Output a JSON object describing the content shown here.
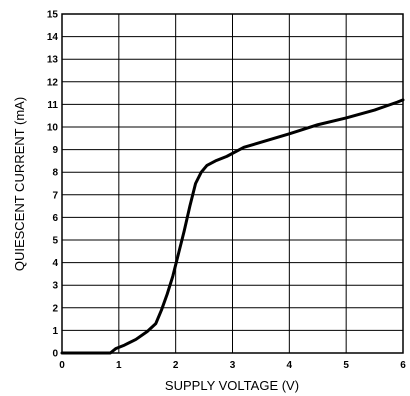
{
  "chart_data": {
    "type": "line",
    "title": "",
    "xlabel": "SUPPLY VOLTAGE (V)",
    "ylabel": "QUIESCENT CURRENT (mA)",
    "xlim": [
      0,
      6
    ],
    "ylim": [
      0,
      15
    ],
    "x_ticks": [
      0,
      1,
      2,
      3,
      4,
      5,
      6
    ],
    "y_ticks": [
      0,
      1,
      2,
      3,
      4,
      5,
      6,
      7,
      8,
      9,
      10,
      11,
      12,
      13,
      14,
      15
    ],
    "grid": true,
    "legend": "none",
    "series": [
      {
        "color": "#000000",
        "x": [
          0,
          0.85,
          0.95,
          1.1,
          1.3,
          1.5,
          1.65,
          1.75,
          1.85,
          1.95,
          2.05,
          2.15,
          2.25,
          2.35,
          2.45,
          2.55,
          2.7,
          2.9,
          3.2,
          3.6,
          4.0,
          4.5,
          5.0,
          5.5,
          5.9,
          6.0
        ],
        "y": [
          0,
          0,
          0.2,
          0.35,
          0.6,
          0.95,
          1.3,
          1.9,
          2.6,
          3.4,
          4.4,
          5.4,
          6.5,
          7.5,
          8.0,
          8.3,
          8.5,
          8.7,
          9.1,
          9.4,
          9.7,
          10.1,
          10.4,
          10.75,
          11.1,
          11.2
        ]
      }
    ]
  }
}
